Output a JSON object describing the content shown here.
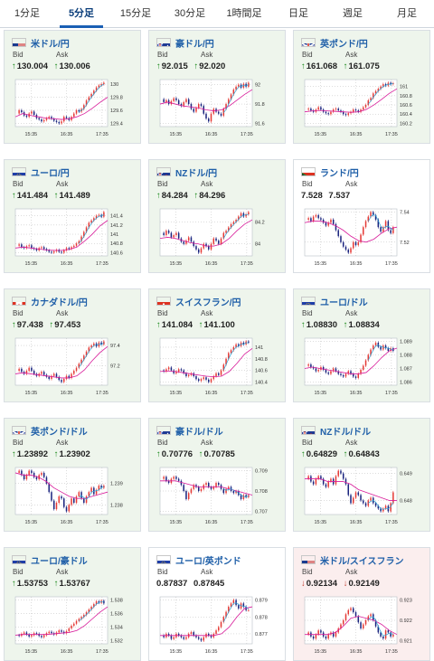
{
  "tabs": [
    "1分足",
    "5分足",
    "15分足",
    "30分足",
    "1時間足",
    "日足",
    "週足",
    "月足"
  ],
  "active_tab": 1,
  "bid_label": "Bid",
  "ask_label": "Ask",
  "cards": [
    {
      "pair": "米ドル/円",
      "bid": "130.004",
      "ask": "130.006",
      "dir": "up",
      "flag": "us",
      "flag_icon": "us-flag-icon",
      "y_ticks": [
        "130",
        "129.8",
        "129.6",
        "129.4"
      ],
      "x_ticks": [
        "15:35",
        "16:35",
        "17:35"
      ],
      "series": [
        129.55,
        129.6,
        129.57,
        129.52,
        129.5,
        129.55,
        129.58,
        129.53,
        129.48,
        129.46,
        129.43,
        129.45,
        129.48,
        129.5,
        129.47,
        129.44,
        129.42,
        129.4,
        129.43,
        129.5,
        129.48,
        129.45,
        129.5,
        129.55,
        129.6,
        129.58,
        129.62,
        129.68,
        129.75,
        129.8,
        129.85,
        129.9,
        129.95,
        129.98,
        130.0,
        130.02
      ],
      "ma": [
        129.5,
        129.55,
        129.52,
        129.5,
        129.48,
        129.47,
        129.46,
        129.47,
        129.5,
        129.55,
        129.63,
        129.72,
        129.8
      ]
    },
    {
      "pair": "豪ドル/円",
      "bid": "92.015",
      "ask": "92.020",
      "dir": "up",
      "flag": "au",
      "flag_icon": "au-flag-icon",
      "y_ticks": [
        "92",
        "91.8",
        "91.6"
      ],
      "x_ticks": [
        "15:35",
        "16:35",
        "17:35"
      ],
      "series": [
        91.85,
        91.82,
        91.84,
        91.8,
        91.83,
        91.86,
        91.84,
        91.8,
        91.78,
        91.82,
        91.85,
        91.8,
        91.75,
        91.72,
        91.76,
        91.8,
        91.78,
        91.7,
        91.65,
        91.62,
        91.7,
        91.75,
        91.72,
        91.7,
        91.68,
        91.75,
        91.8,
        91.85,
        91.9,
        91.95,
        91.98,
        92.0,
        91.97,
        92.01,
        91.98,
        92.02
      ],
      "ma": [
        91.8,
        91.82,
        91.8,
        91.78,
        91.77,
        91.76,
        91.74,
        91.73,
        91.74,
        91.78,
        91.84,
        91.9,
        91.95
      ]
    },
    {
      "pair": "英ポンド/円",
      "bid": "161.068",
      "ask": "161.075",
      "dir": "up",
      "flag": "gb",
      "flag_icon": "gb-flag-icon",
      "y_ticks": [
        "161",
        "160.8",
        "160.6",
        "160.4",
        "160.2"
      ],
      "x_ticks": [
        "15:35",
        "16:35",
        "17:35"
      ],
      "series": [
        160.5,
        160.52,
        160.48,
        160.45,
        160.5,
        160.55,
        160.5,
        160.45,
        160.42,
        160.4,
        160.45,
        160.5,
        160.52,
        160.48,
        160.45,
        160.4,
        160.38,
        160.42,
        160.45,
        160.5,
        160.48,
        160.45,
        160.5,
        160.55,
        160.6,
        160.7,
        160.75,
        160.85,
        160.9,
        160.95,
        161.0,
        161.05,
        161.02,
        161.08,
        161.05,
        161.07
      ],
      "ma": [
        160.45,
        160.47,
        160.48,
        160.47,
        160.46,
        160.45,
        160.44,
        160.45,
        160.5,
        160.6,
        160.72,
        160.85,
        160.95
      ]
    },
    {
      "pair": "ユーロ/円",
      "bid": "141.484",
      "ask": "141.489",
      "dir": "up",
      "flag": "eu",
      "flag_icon": "eu-flag-icon",
      "y_ticks": [
        "141.4",
        "141.2",
        "141",
        "140.8",
        "140.6"
      ],
      "x_ticks": [
        "15:35",
        "16:35",
        "17:35"
      ],
      "series": [
        140.75,
        140.78,
        140.72,
        140.7,
        140.74,
        140.76,
        140.7,
        140.68,
        140.65,
        140.7,
        140.72,
        140.68,
        140.65,
        140.62,
        140.6,
        140.63,
        140.66,
        140.62,
        140.6,
        140.65,
        140.7,
        140.68,
        140.72,
        140.75,
        140.8,
        140.85,
        140.95,
        141.05,
        141.15,
        141.25,
        141.3,
        141.35,
        141.4,
        141.42,
        141.38,
        141.48
      ],
      "ma": [
        140.7,
        140.72,
        140.7,
        140.68,
        140.66,
        140.65,
        140.65,
        140.67,
        140.72,
        140.85,
        141.0,
        141.18,
        141.3
      ]
    },
    {
      "pair": "NZドル/円",
      "bid": "84.284",
      "ask": "84.296",
      "dir": "up",
      "flag": "nz",
      "flag_icon": "nz-flag-icon",
      "y_ticks": [
        "84.2",
        "84"
      ],
      "x_ticks": [
        "15:35",
        "16:35",
        "17:35"
      ],
      "series": [
        84.1,
        84.08,
        84.12,
        84.1,
        84.06,
        84.08,
        84.1,
        84.05,
        84.02,
        84.0,
        84.03,
        84.06,
        84.02,
        83.98,
        83.95,
        83.92,
        83.96,
        84.0,
        83.98,
        83.95,
        84.0,
        84.05,
        84.03,
        84.0,
        84.05,
        84.1,
        84.12,
        84.15,
        84.18,
        84.2,
        84.22,
        84.25,
        84.28,
        84.25,
        84.27,
        84.29
      ],
      "ma": [
        84.05,
        84.06,
        84.05,
        84.03,
        84.01,
        84.0,
        83.98,
        83.98,
        84.0,
        84.05,
        84.12,
        84.18,
        84.22
      ]
    },
    {
      "pair": "ランド/円",
      "bid": "7.528",
      "ask": "7.537",
      "dir": "none",
      "flag": "za",
      "flag_icon": "za-flag-icon",
      "y_ticks": [
        "7.54",
        "7.52"
      ],
      "x_ticks": [
        "15:35",
        "16:35",
        "17:35"
      ],
      "series": [
        7.535,
        7.536,
        7.534,
        7.537,
        7.538,
        7.536,
        7.535,
        7.533,
        7.531,
        7.533,
        7.535,
        7.532,
        7.528,
        7.524,
        7.52,
        7.517,
        7.515,
        7.513,
        7.516,
        7.52,
        7.518,
        7.52,
        7.525,
        7.53,
        7.534,
        7.537,
        7.54,
        7.538,
        7.535,
        7.53,
        7.527,
        7.53,
        7.534,
        7.528,
        7.526,
        7.53
      ],
      "ma": [
        7.533,
        7.534,
        7.534,
        7.533,
        7.531,
        7.528,
        7.524,
        7.521,
        7.52,
        7.522,
        7.526,
        7.529,
        7.53
      ]
    },
    {
      "pair": "カナダドル/円",
      "bid": "97.438",
      "ask": "97.453",
      "dir": "up",
      "flag": "ca",
      "flag_icon": "ca-flag-icon",
      "y_ticks": [
        "97.4",
        "97.2"
      ],
      "x_ticks": [
        "15:35",
        "16:35",
        "17:35"
      ],
      "series": [
        97.15,
        97.17,
        97.14,
        97.12,
        97.15,
        97.18,
        97.15,
        97.12,
        97.1,
        97.12,
        97.14,
        97.11,
        97.09,
        97.07,
        97.1,
        97.12,
        97.09,
        97.06,
        97.04,
        97.07,
        97.1,
        97.08,
        97.12,
        97.15,
        97.18,
        97.22,
        97.26,
        97.3,
        97.34,
        97.38,
        97.4,
        97.42,
        97.39,
        97.43,
        97.41,
        97.44
      ],
      "ma": [
        97.12,
        97.13,
        97.12,
        97.11,
        97.1,
        97.09,
        97.08,
        97.08,
        97.1,
        97.16,
        97.25,
        97.33,
        97.39
      ]
    },
    {
      "pair": "スイスフラン/円",
      "bid": "141.084",
      "ask": "141.100",
      "dir": "up",
      "flag": "ch",
      "flag_icon": "ch-flag-icon",
      "y_ticks": [
        "141",
        "140.8",
        "140.6",
        "140.4"
      ],
      "x_ticks": [
        "15:35",
        "16:35",
        "17:35"
      ],
      "series": [
        140.6,
        140.58,
        140.62,
        140.65,
        140.6,
        140.55,
        140.58,
        140.62,
        140.6,
        140.55,
        140.5,
        140.52,
        140.55,
        140.5,
        140.45,
        140.42,
        140.45,
        140.48,
        140.44,
        140.4,
        140.45,
        140.5,
        140.55,
        140.52,
        140.6,
        140.7,
        140.8,
        140.9,
        140.95,
        141.0,
        141.05,
        141.02,
        141.08,
        141.05,
        141.1,
        141.08
      ],
      "ma": [
        140.58,
        140.59,
        140.58,
        140.56,
        140.54,
        140.52,
        140.5,
        140.49,
        140.5,
        140.58,
        140.72,
        140.88,
        140.98
      ]
    },
    {
      "pair": "ユーロ/ドル",
      "bid": "1.08830",
      "ask": "1.08834",
      "dir": "up",
      "flag": "eu",
      "flag_icon": "eu-flag-icon",
      "y_ticks": [
        "1.089",
        "1.088",
        "1.087",
        "1.086"
      ],
      "x_ticks": [
        "15:35",
        "16:35",
        "17:35"
      ],
      "series": [
        1.0872,
        1.0873,
        1.0871,
        1.087,
        1.0868,
        1.0869,
        1.0871,
        1.0869,
        1.0867,
        1.0866,
        1.0868,
        1.087,
        1.0868,
        1.0866,
        1.0865,
        1.0864,
        1.0866,
        1.0868,
        1.0866,
        1.0864,
        1.0863,
        1.0866,
        1.0869,
        1.0872,
        1.0876,
        1.088,
        1.0884,
        1.0887,
        1.0889,
        1.0886,
        1.0884,
        1.0887,
        1.0885,
        1.0883,
        1.0885,
        1.0883
      ],
      "ma": [
        1.087,
        1.0871,
        1.087,
        1.0869,
        1.0868,
        1.0867,
        1.0866,
        1.0866,
        1.0867,
        1.0872,
        1.0878,
        1.0883,
        1.0885
      ]
    },
    {
      "pair": "英ポンド/ドル",
      "bid": "1.23892",
      "ask": "1.23902",
      "dir": "up",
      "flag": "gb",
      "flag_icon": "gb-flag-icon",
      "y_ticks": [
        "1.239",
        "1.238"
      ],
      "x_ticks": [
        "15:35",
        "16:35",
        "17:35"
      ],
      "series": [
        1.2395,
        1.2396,
        1.2394,
        1.2392,
        1.2394,
        1.2396,
        1.2395,
        1.2393,
        1.2392,
        1.2394,
        1.2395,
        1.2393,
        1.239,
        1.2386,
        1.2382,
        1.2378,
        1.2381,
        1.2384,
        1.2383,
        1.2379,
        1.2377,
        1.238,
        1.2383,
        1.2381,
        1.2384,
        1.2386,
        1.2383,
        1.2381,
        1.2384,
        1.2386,
        1.2388,
        1.2385,
        1.2387,
        1.2389,
        1.2388,
        1.2389
      ],
      "ma": [
        1.2395,
        1.2394,
        1.2394,
        1.2393,
        1.2391,
        1.2388,
        1.2386,
        1.2384,
        1.2383,
        1.2383,
        1.2384,
        1.2385,
        1.2386
      ]
    },
    {
      "pair": "豪ドル/ドル",
      "bid": "0.70776",
      "ask": "0.70785",
      "dir": "up",
      "flag": "au",
      "flag_icon": "au-flag-icon",
      "y_ticks": [
        "0.709",
        "0.708",
        "0.707"
      ],
      "x_ticks": [
        "15:35",
        "16:35",
        "17:35"
      ],
      "series": [
        0.7086,
        0.7087,
        0.7085,
        0.7084,
        0.7086,
        0.7087,
        0.7086,
        0.7085,
        0.7083,
        0.708,
        0.7076,
        0.7079,
        0.7081,
        0.7083,
        0.7082,
        0.708,
        0.7081,
        0.7083,
        0.7084,
        0.7082,
        0.7081,
        0.7082,
        0.7084,
        0.7083,
        0.7081,
        0.7079,
        0.7081,
        0.7082,
        0.708,
        0.7079,
        0.708,
        0.7078,
        0.7076,
        0.7078,
        0.7077,
        0.7078
      ],
      "ma": [
        0.7085,
        0.7085,
        0.7085,
        0.7084,
        0.7083,
        0.7082,
        0.7082,
        0.7082,
        0.7082,
        0.7081,
        0.708,
        0.7079,
        0.7078
      ]
    },
    {
      "pair": "NZドル/ドル",
      "bid": "0.64829",
      "ask": "0.64843",
      "dir": "up",
      "flag": "nz",
      "flag_icon": "nz-flag-icon",
      "y_ticks": [
        "0.649",
        "0.648"
      ],
      "x_ticks": [
        "15:35",
        "16:35",
        "17:35"
      ],
      "series": [
        0.6488,
        0.6489,
        0.6487,
        0.6486,
        0.6488,
        0.6489,
        0.6488,
        0.6486,
        0.6485,
        0.6487,
        0.6488,
        0.6486,
        0.6489,
        0.6491,
        0.649,
        0.6488,
        0.6486,
        0.6482,
        0.6479,
        0.6481,
        0.6483,
        0.6482,
        0.648,
        0.6479,
        0.6478,
        0.648,
        0.6481,
        0.6479,
        0.6478,
        0.6477,
        0.6476,
        0.6477,
        0.6478,
        0.6476,
        0.6479,
        0.6483
      ],
      "ma": [
        0.6488,
        0.6488,
        0.6488,
        0.6487,
        0.6487,
        0.6487,
        0.6486,
        0.6484,
        0.6483,
        0.6482,
        0.6481,
        0.648,
        0.648
      ]
    },
    {
      "pair": "ユーロ/豪ドル",
      "bid": "1.53753",
      "ask": "1.53767",
      "dir": "up",
      "flag": "eu",
      "flag_icon": "eu-flag-icon",
      "y_ticks": [
        "1.538",
        "1.536",
        "1.534",
        "1.532"
      ],
      "x_ticks": [
        "15:35",
        "16:35",
        "17:35"
      ],
      "series": [
        1.5328,
        1.5327,
        1.533,
        1.5332,
        1.5329,
        1.5326,
        1.5328,
        1.5331,
        1.533,
        1.5327,
        1.5325,
        1.5328,
        1.5331,
        1.5333,
        1.5331,
        1.5329,
        1.5332,
        1.5335,
        1.5333,
        1.5331,
        1.5334,
        1.5338,
        1.5342,
        1.5345,
        1.5349,
        1.5352,
        1.5355,
        1.5358,
        1.5362,
        1.5366,
        1.537,
        1.5374,
        1.5378,
        1.5376,
        1.5379,
        1.5375
      ],
      "ma": [
        1.5328,
        1.5329,
        1.5329,
        1.5329,
        1.5329,
        1.533,
        1.5331,
        1.5332,
        1.5335,
        1.5342,
        1.5352,
        1.5362,
        1.537
      ]
    },
    {
      "pair": "ユーロ/英ポンド",
      "bid": "0.87837",
      "ask": "0.87845",
      "dir": "none",
      "flag": "eu",
      "flag_icon": "eu-flag-icon",
      "y_ticks": [
        "0.879",
        "0.878",
        "0.877"
      ],
      "x_ticks": [
        "15:35",
        "16:35",
        "17:35"
      ],
      "series": [
        0.8769,
        0.8768,
        0.877,
        0.8769,
        0.8767,
        0.8768,
        0.877,
        0.8769,
        0.8768,
        0.8767,
        0.8768,
        0.877,
        0.8771,
        0.8769,
        0.8768,
        0.8767,
        0.8766,
        0.8768,
        0.877,
        0.8769,
        0.8768,
        0.877,
        0.8772,
        0.8774,
        0.8777,
        0.878,
        0.8783,
        0.8786,
        0.8788,
        0.879,
        0.8787,
        0.8785,
        0.8788,
        0.8786,
        0.8784,
        0.8784
      ],
      "ma": [
        0.8769,
        0.8769,
        0.8769,
        0.8769,
        0.8769,
        0.8769,
        0.8769,
        0.8769,
        0.877,
        0.8774,
        0.878,
        0.8785,
        0.8786
      ]
    },
    {
      "pair": "米ドル/スイスフラン",
      "bid": "0.92134",
      "ask": "0.92149",
      "dir": "down",
      "flag": "us",
      "flag_icon": "us-flag-icon",
      "y_ticks": [
        "0.923",
        "0.922",
        "0.921"
      ],
      "x_ticks": [
        "15:35",
        "16:35",
        "17:35"
      ],
      "series": [
        0.9213,
        0.9214,
        0.9212,
        0.9211,
        0.9213,
        0.9215,
        0.9214,
        0.9212,
        0.9211,
        0.9213,
        0.9214,
        0.9212,
        0.9214,
        0.9216,
        0.9218,
        0.922,
        0.9223,
        0.9225,
        0.9226,
        0.9224,
        0.9222,
        0.9219,
        0.9216,
        0.9218,
        0.922,
        0.9222,
        0.9223,
        0.922,
        0.9217,
        0.9214,
        0.9212,
        0.9211,
        0.9215,
        0.9214,
        0.9212,
        0.9213
      ],
      "ma": [
        0.9213,
        0.9213,
        0.9213,
        0.9213,
        0.9214,
        0.9217,
        0.9221,
        0.9222,
        0.9221,
        0.922,
        0.9218,
        0.9215,
        0.9213
      ]
    }
  ],
  "colors": {
    "candle_up": "#e53935",
    "candle_down": "#1a237e",
    "ma_line": "#d81b9a",
    "ma_fast": "#29a3d6",
    "card_up_bg": "#eef5ec",
    "card_down_bg": "#fbeeee",
    "pair_text": "#1f5fa8"
  }
}
